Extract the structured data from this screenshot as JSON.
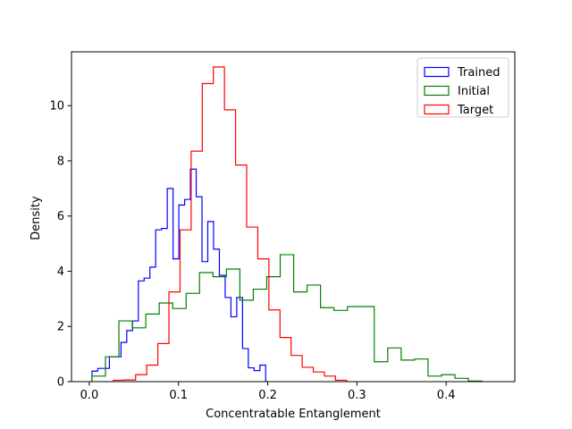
{
  "chart_data": {
    "type": "step-histogram",
    "xlabel": "Concentratable Entanglement",
    "ylabel": "Density",
    "xlim": [
      -0.02,
      0.477
    ],
    "ylim": [
      0,
      11.95
    ],
    "xticks": [
      {
        "value": 0.0,
        "label": "0.0"
      },
      {
        "value": 0.1,
        "label": "0.1"
      },
      {
        "value": 0.2,
        "label": "0.2"
      },
      {
        "value": 0.3,
        "label": "0.3"
      },
      {
        "value": 0.4,
        "label": "0.4"
      }
    ],
    "yticks": [
      {
        "value": 0,
        "label": "0"
      },
      {
        "value": 2,
        "label": "2"
      },
      {
        "value": 4,
        "label": "4"
      },
      {
        "value": 6,
        "label": "6"
      },
      {
        "value": 8,
        "label": "8"
      },
      {
        "value": 10,
        "label": "10"
      }
    ],
    "grid": false,
    "legend_position": "top-right",
    "series": [
      {
        "name": "Trained",
        "color": "#0000ff",
        "x0": 0.003,
        "bin_width": 0.00649,
        "values": [
          0.38,
          0.48,
          0.48,
          0.9,
          0.9,
          1.42,
          1.85,
          2.2,
          3.65,
          3.75,
          4.15,
          5.5,
          5.55,
          7.0,
          4.45,
          6.4,
          6.6,
          7.7,
          6.7,
          4.35,
          5.8,
          4.8,
          3.85,
          3.05,
          2.35,
          3.05,
          1.2,
          0.5,
          0.4,
          0.6
        ]
      },
      {
        "name": "Initial",
        "color": "#008000",
        "x0": 0.003,
        "bin_width": 0.01507,
        "values": [
          0.2,
          0.9,
          2.2,
          1.95,
          2.45,
          2.85,
          2.65,
          3.2,
          3.95,
          3.8,
          4.08,
          2.95,
          3.35,
          3.8,
          4.6,
          3.25,
          3.5,
          2.68,
          2.58,
          2.72,
          2.72,
          0.72,
          1.22,
          0.78,
          0.82,
          0.2,
          0.25,
          0.12,
          0.02
        ]
      },
      {
        "name": "Target",
        "color": "#ff0000",
        "x0": 0.027,
        "bin_width": 0.01245,
        "values": [
          0.05,
          0.06,
          0.25,
          0.6,
          1.38,
          3.25,
          5.5,
          8.35,
          10.8,
          11.4,
          9.85,
          7.85,
          5.6,
          4.45,
          2.6,
          1.6,
          0.95,
          0.52,
          0.35,
          0.2,
          0.05
        ]
      }
    ]
  }
}
